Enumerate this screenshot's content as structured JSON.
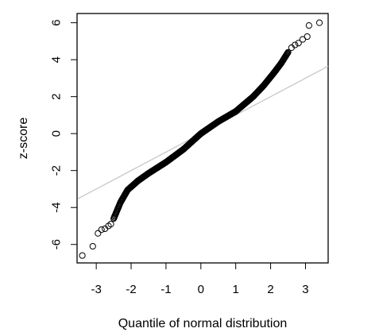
{
  "chart_data": {
    "type": "scatter",
    "title": "",
    "xlabel": "Quantile of normal distribution",
    "ylabel": "z-score",
    "xlim": [
      -3.55,
      3.65
    ],
    "ylim": [
      -7.0,
      6.5
    ],
    "xticks": [
      -3,
      -2,
      -1,
      0,
      1,
      2,
      3
    ],
    "yticks": [
      -6,
      -4,
      -2,
      0,
      2,
      4,
      6
    ],
    "xtick_labels": [
      "-3",
      "-2",
      "-1",
      "0",
      "1",
      "2",
      "3"
    ],
    "ytick_labels": [
      "-6",
      "-4",
      "-2",
      "0",
      "2",
      "4",
      "6"
    ],
    "reference_line": {
      "intercept": 0.0,
      "slope": 1.0,
      "color": "#c8c8c8"
    },
    "grid": false,
    "legend": "none",
    "marker": "open-circle",
    "point_color": "#000000",
    "n_points": 400,
    "points": [
      {
        "x": -3.4,
        "y": -6.6
      },
      {
        "x": -3.1,
        "y": -6.1
      },
      {
        "x": -2.95,
        "y": -5.4
      },
      {
        "x": -2.85,
        "y": -5.2
      },
      {
        "x": -2.75,
        "y": -5.15
      },
      {
        "x": -2.65,
        "y": -5.0
      },
      {
        "x": -2.58,
        "y": -4.9
      },
      {
        "x": 2.6,
        "y": 4.65
      },
      {
        "x": 2.7,
        "y": 4.8
      },
      {
        "x": 2.8,
        "y": 4.9
      },
      {
        "x": 2.92,
        "y": 5.1
      },
      {
        "x": 3.05,
        "y": 5.25
      },
      {
        "x": 3.1,
        "y": 5.85
      },
      {
        "x": 3.4,
        "y": 6.0
      }
    ],
    "curve_segments": [
      {
        "x": -2.5,
        "y": -4.6
      },
      {
        "x": -2.3,
        "y": -3.7
      },
      {
        "x": -2.1,
        "y": -3.05
      },
      {
        "x": -1.8,
        "y": -2.55
      },
      {
        "x": -1.5,
        "y": -2.15
      },
      {
        "x": -1.0,
        "y": -1.55
      },
      {
        "x": -0.5,
        "y": -0.85
      },
      {
        "x": 0.0,
        "y": 0.0
      },
      {
        "x": 0.5,
        "y": 0.65
      },
      {
        "x": 1.0,
        "y": 1.2
      },
      {
        "x": 1.5,
        "y": 2.0
      },
      {
        "x": 1.8,
        "y": 2.6
      },
      {
        "x": 2.1,
        "y": 3.3
      },
      {
        "x": 2.3,
        "y": 3.8
      },
      {
        "x": 2.5,
        "y": 4.4
      }
    ]
  }
}
